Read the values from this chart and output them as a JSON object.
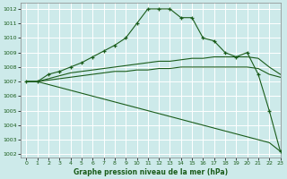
{
  "title": "Graphe pression niveau de la mer (hPa)",
  "background_color": "#cdeaea",
  "grid_color": "#ffffff",
  "line_color": "#1a5c1a",
  "xlim": [
    -0.5,
    23
  ],
  "ylim": [
    1001.8,
    1012.4
  ],
  "yticks": [
    1002,
    1003,
    1004,
    1005,
    1006,
    1007,
    1008,
    1009,
    1010,
    1011,
    1012
  ],
  "xticks": [
    0,
    1,
    2,
    3,
    4,
    5,
    6,
    7,
    8,
    9,
    10,
    11,
    12,
    13,
    14,
    15,
    16,
    17,
    18,
    19,
    20,
    21,
    22,
    23
  ],
  "series": [
    {
      "x": [
        0,
        1,
        2,
        3,
        4,
        5,
        6,
        7,
        8,
        9,
        10,
        11,
        12,
        13,
        14,
        15,
        16,
        17,
        18,
        19,
        20,
        21,
        22,
        23
      ],
      "y": [
        1007.0,
        1007.0,
        1007.5,
        1007.7,
        1008.0,
        1008.3,
        1008.7,
        1009.1,
        1009.5,
        1010.0,
        1011.0,
        1012.0,
        1012.0,
        1012.0,
        1011.4,
        1011.4,
        1010.0,
        1009.8,
        1009.0,
        1008.7,
        1009.0,
        1007.5,
        1005.0,
        1002.2
      ],
      "marker": true
    },
    {
      "x": [
        0,
        1,
        2,
        3,
        4,
        5,
        6,
        7,
        8,
        9,
        10,
        11,
        12,
        13,
        14,
        15,
        16,
        17,
        18,
        19,
        20,
        21,
        22,
        23
      ],
      "y": [
        1007.0,
        1007.0,
        1007.2,
        1007.4,
        1007.6,
        1007.7,
        1007.8,
        1007.9,
        1008.0,
        1008.1,
        1008.2,
        1008.3,
        1008.4,
        1008.4,
        1008.5,
        1008.6,
        1008.6,
        1008.7,
        1008.7,
        1008.7,
        1008.7,
        1008.6,
        1008.0,
        1007.5
      ],
      "marker": false
    },
    {
      "x": [
        0,
        1,
        2,
        3,
        4,
        5,
        6,
        7,
        8,
        9,
        10,
        11,
        12,
        13,
        14,
        15,
        16,
        17,
        18,
        19,
        20,
        21,
        22,
        23
      ],
      "y": [
        1007.0,
        1007.0,
        1007.1,
        1007.2,
        1007.3,
        1007.4,
        1007.5,
        1007.6,
        1007.7,
        1007.7,
        1007.8,
        1007.8,
        1007.9,
        1007.9,
        1008.0,
        1008.0,
        1008.0,
        1008.0,
        1008.0,
        1008.0,
        1008.0,
        1007.9,
        1007.5,
        1007.3
      ],
      "marker": false
    },
    {
      "x": [
        0,
        1,
        2,
        3,
        4,
        5,
        6,
        7,
        8,
        9,
        10,
        11,
        12,
        13,
        14,
        15,
        16,
        17,
        18,
        19,
        20,
        21,
        22,
        23
      ],
      "y": [
        1007.0,
        1007.0,
        1006.8,
        1006.6,
        1006.4,
        1006.2,
        1006.0,
        1005.8,
        1005.6,
        1005.4,
        1005.2,
        1005.0,
        1004.8,
        1004.6,
        1004.4,
        1004.2,
        1004.0,
        1003.8,
        1003.6,
        1003.4,
        1003.2,
        1003.0,
        1002.8,
        1002.2
      ],
      "marker": false
    }
  ]
}
